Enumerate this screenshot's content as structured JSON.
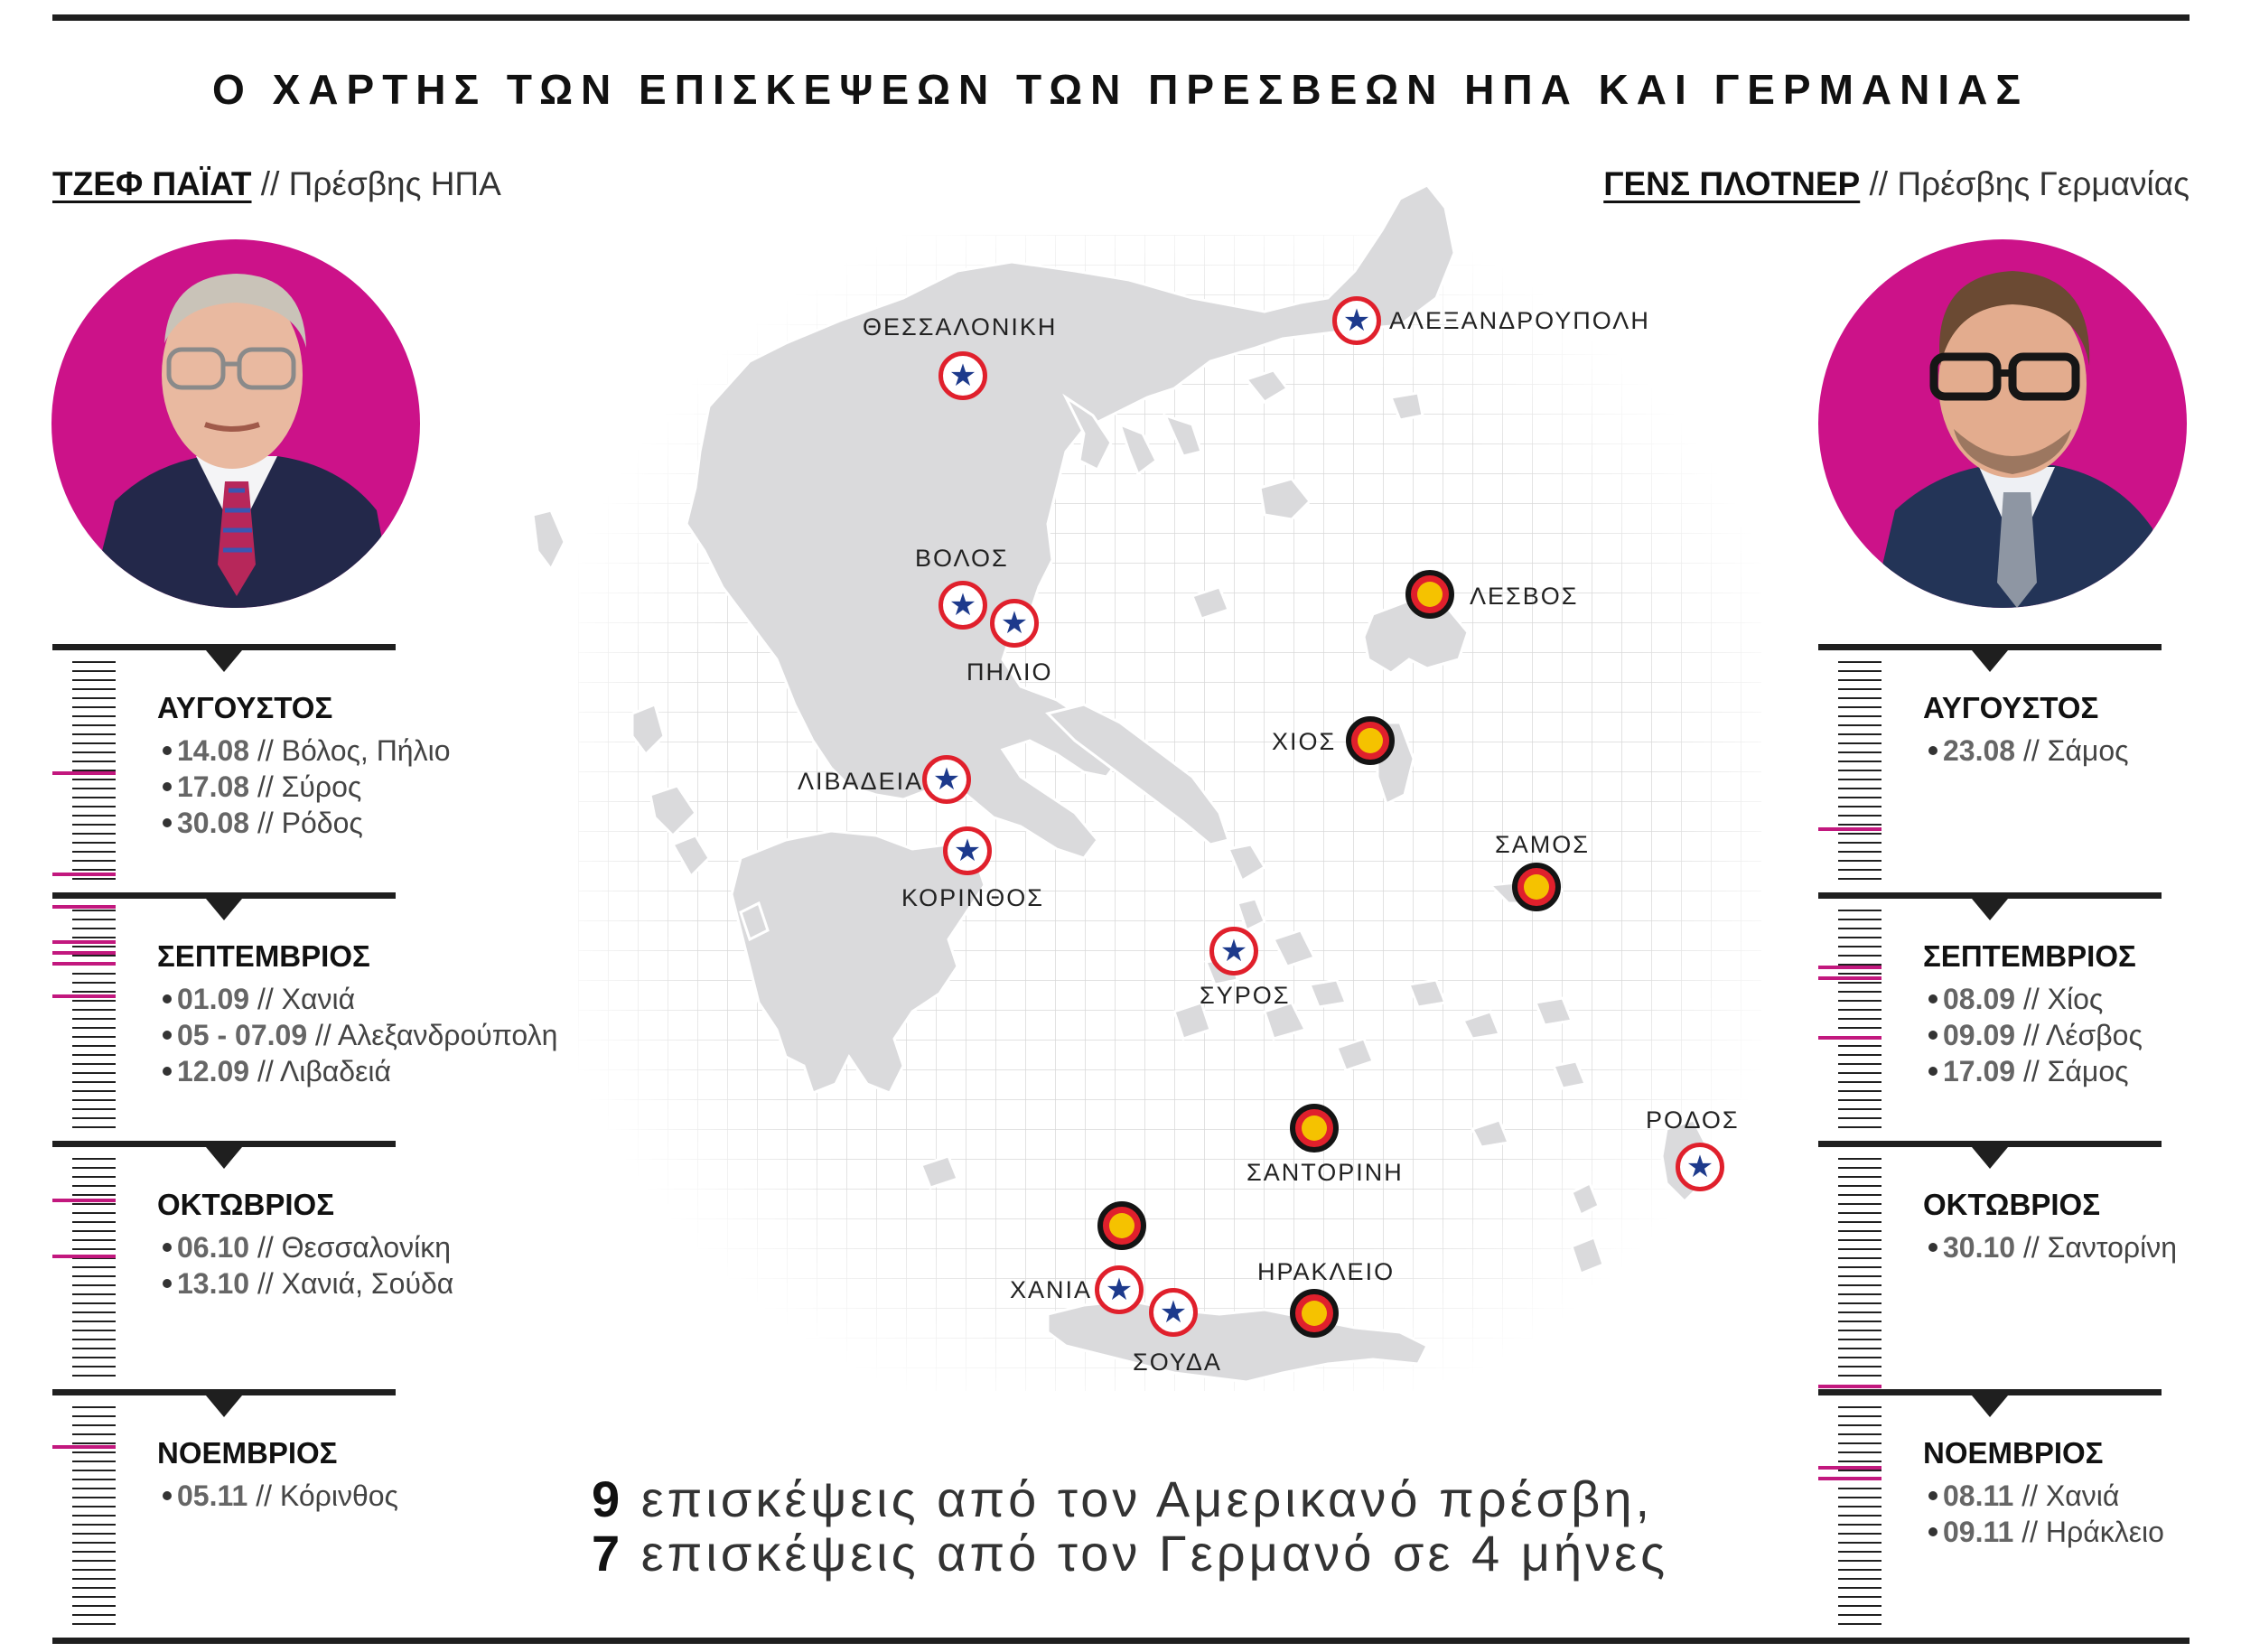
{
  "title": "Ο ΧΑΡΤΗΣ ΤΩΝ ΕΠΙΣΚΕΨΕΩΝ ΤΩΝ ΠΡΕΣΒΕΩΝ ΗΠΑ ΚΑΙ ΓΕΡΜΑΝΙΑΣ",
  "colors": {
    "us_ring": "#e0202c",
    "us_star": "#1d3a8c",
    "de_ring": "#141414",
    "de_fill": "#e0202c",
    "de_core": "#f5c200",
    "portrait_bg": "#cc1289",
    "tick_accent": "#c2187e",
    "land": "#dadadc"
  },
  "us": {
    "name": "ΤΖΕΦ ΠΑΪΑΤ",
    "role": "// Πρέσβης ΗΠΑ",
    "months": [
      {
        "name": "ΑΥΓΟΥΣΤΟΣ",
        "entries": [
          {
            "date": "14.08",
            "place": "// Βόλος, Πήλιο"
          },
          {
            "date": "17.08",
            "place": "// Σύρος"
          },
          {
            "date": "30.08",
            "place": "// Ρόδος"
          }
        ]
      },
      {
        "name": "ΣΕΠΤΕΜΒΡΙΟΣ",
        "entries": [
          {
            "date": "01.09",
            "place": "// Χανιά"
          },
          {
            "date": "05 - 07.09",
            "place": "// Αλεξανδρούπολη"
          },
          {
            "date": "12.09",
            "place": "// Λιβαδειά"
          }
        ]
      },
      {
        "name": "ΟΚΤΩΒΡΙΟΣ",
        "entries": [
          {
            "date": "06.10",
            "place": "// Θεσσαλονίκη"
          },
          {
            "date": "13.10",
            "place": "// Χανιά, Σούδα"
          }
        ]
      },
      {
        "name": "ΝΟΕΜΒΡΙΟΣ",
        "entries": [
          {
            "date": "05.11",
            "place": "// Κόρινθος"
          }
        ]
      }
    ]
  },
  "de": {
    "name": "ΓΕΝΣ ΠΛΟΤΝΕΡ",
    "role": "// Πρέσβης Γερμανίας",
    "months": [
      {
        "name": "ΑΥΓΟΥΣΤΟΣ",
        "entries": [
          {
            "date": "23.08",
            "place": "// Σάμος"
          }
        ]
      },
      {
        "name": "ΣΕΠΤΕΜΒΡΙΟΣ",
        "entries": [
          {
            "date": "08.09",
            "place": "// Χίος"
          },
          {
            "date": "09.09",
            "place": "// Λέσβος"
          },
          {
            "date": "17.09",
            "place": "// Σάμος"
          }
        ]
      },
      {
        "name": "ΟΚΤΩΒΡΙΟΣ",
        "entries": [
          {
            "date": "30.10",
            "place": "// Σαντορίνη"
          }
        ]
      },
      {
        "name": "ΝΟΕΜΒΡΙΟΣ",
        "entries": [
          {
            "date": "08.11",
            "place": "// Χανιά"
          },
          {
            "date": "09.11",
            "place": "// Ηράκλειο"
          }
        ]
      }
    ]
  },
  "map_labels": {
    "thessaloniki": "ΘΕΣΣΑΛΟΝΙΚΗ",
    "alexandroupoli": "ΑΛΕΞΑΝΔΡΟΥΠΟΛΗ",
    "volos": "ΒΟΛΟΣ",
    "pilio": "ΠΗΛΙΟ",
    "lesvos": "ΛΕΣΒΟΣ",
    "chios": "ΧΙΟΣ",
    "livadeia": "ΛΙΒΑΔΕΙΑ",
    "korinthos": "ΚΟΡΙΝΘΟΣ",
    "samos": "ΣΑΜΟΣ",
    "syros": "ΣΥΡΟΣ",
    "rodos": "ΡΟΔΟΣ",
    "santorini": "ΣΑΝΤΟΡΙΝΗ",
    "irakleio": "ΗΡΑΚΛΕΙΟ",
    "chania": "ΧΑΝΙΑ",
    "souda": "ΣΟΥΔΑ"
  },
  "summary": {
    "us_count": "9",
    "us_text": "επισκέψεις από τον Αμερικανό πρέσβη,",
    "de_count": "7",
    "de_text": "επισκέψεις από τον Γερμανό σε 4 μήνες"
  }
}
